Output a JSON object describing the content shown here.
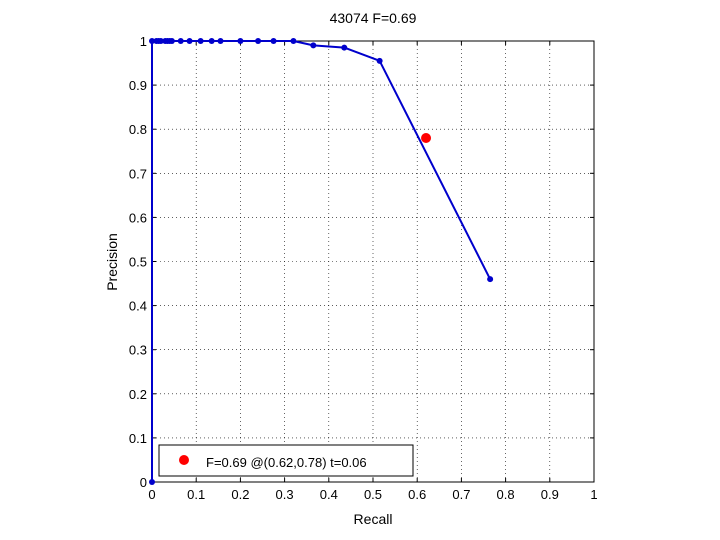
{
  "chart_data": {
    "type": "line",
    "title": "43074 F=0.69",
    "xlabel": "Recall",
    "ylabel": "Precision",
    "xlim": [
      0,
      1
    ],
    "ylim": [
      0,
      1
    ],
    "xticks": [
      0,
      0.1,
      0.2,
      0.3,
      0.4,
      0.5,
      0.6,
      0.7,
      0.8,
      0.9,
      1
    ],
    "yticks": [
      0,
      0.1,
      0.2,
      0.3,
      0.4,
      0.5,
      0.6,
      0.7,
      0.8,
      0.9,
      1
    ],
    "xtick_labels": [
      "0",
      "0.1",
      "0.2",
      "0.3",
      "0.4",
      "0.5",
      "0.6",
      "0.7",
      "0.8",
      "0.9",
      "1"
    ],
    "ytick_labels": [
      "0",
      "0.1",
      "0.2",
      "0.3",
      "0.4",
      "0.5",
      "0.6",
      "0.7",
      "0.8",
      "0.9",
      "1"
    ],
    "grid": true,
    "series": [
      {
        "color": "#0000cc",
        "marker": "dot",
        "x": [
          0.0,
          0.0,
          0.01,
          0.015,
          0.02,
          0.03,
          0.035,
          0.04,
          0.045,
          0.065,
          0.085,
          0.11,
          0.135,
          0.155,
          0.2,
          0.24,
          0.275,
          0.32,
          0.365,
          0.435,
          0.515,
          0.765
        ],
        "y": [
          0.0,
          1.0,
          1.0,
          1.0,
          1.0,
          1.0,
          1.0,
          1.0,
          1.0,
          1.0,
          1.0,
          1.0,
          1.0,
          1.0,
          1.0,
          1.0,
          1.0,
          1.0,
          0.99,
          0.985,
          0.955,
          0.46
        ]
      }
    ],
    "best_point": {
      "x": 0.62,
      "y": 0.78,
      "color": "#ff0000"
    },
    "legend": {
      "label": "F=0.69 @(0.62,0.78) t=0.06",
      "location": "bottom-left"
    }
  }
}
